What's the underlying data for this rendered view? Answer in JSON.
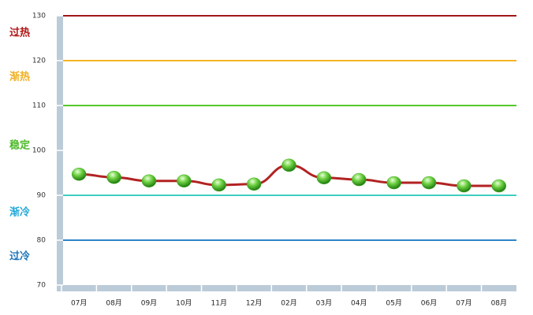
{
  "chart_data": {
    "type": "line",
    "categories": [
      "07月",
      "08月",
      "09月",
      "10月",
      "11月",
      "12月",
      "02月",
      "03月",
      "04月",
      "05月",
      "06月",
      "07月",
      "08月"
    ],
    "values": [
      94.7,
      94.0,
      93.2,
      93.2,
      92.3,
      92.5,
      96.7,
      93.9,
      93.5,
      92.8,
      92.8,
      92.1,
      92.1
    ],
    "color": "#b22222",
    "marker_color": "#3fae1f",
    "ylim": [
      70,
      130
    ],
    "yticks": [
      70,
      80,
      90,
      100,
      110,
      120,
      130
    ],
    "ref_lines": [
      {
        "value": 130,
        "color": "#a01818"
      },
      {
        "value": 120,
        "color": "#f5b423"
      },
      {
        "value": 110,
        "color": "#55c82a"
      },
      {
        "value": 90,
        "color": "#3fcfc0"
      },
      {
        "value": 80,
        "color": "#2e86c8"
      }
    ],
    "zones": [
      {
        "label": "过热",
        "color": "#b01515"
      },
      {
        "label": "渐热",
        "color": "#f0b020"
      },
      {
        "label": "稳定",
        "color": "#4cba28"
      },
      {
        "label": "渐冷",
        "color": "#22a8d8"
      },
      {
        "label": "过冷",
        "color": "#1e74b8"
      }
    ]
  }
}
